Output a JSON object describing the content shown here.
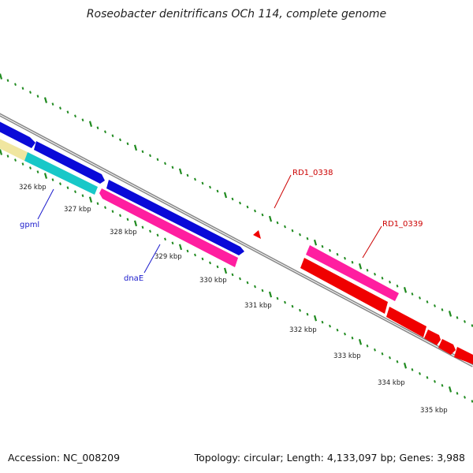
{
  "title": "Roseobacter denitrificans OCh 114, complete genome",
  "footer": {
    "accession": "Accession: NC_008209",
    "summary": "Topology: circular; Length: 4,133,097 bp; Genes: 3,988"
  },
  "ticks": [
    "326 kbp",
    "327 kbp",
    "328 kbp",
    "329 kbp",
    "330 kbp",
    "331 kbp",
    "332 kbp",
    "333 kbp",
    "334 kbp",
    "335 kbp"
  ],
  "genes": {
    "gpml": "gpml",
    "dnaE": "dnaE",
    "rd1_0338": "RD1_0338",
    "rd1_0339": "RD1_0339"
  },
  "colors": {
    "blue": "#0a0ad8",
    "magenta": "#ff1ea0",
    "cyan": "#18c8c8",
    "yellow": "#f0e6a0",
    "red": "#f00000",
    "backbone": "#888888",
    "gc_dots": "#1f8a1f"
  }
}
